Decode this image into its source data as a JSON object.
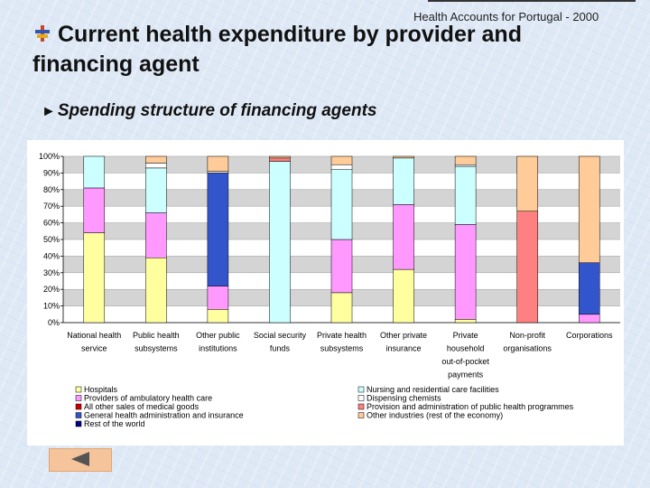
{
  "slide": {
    "header": "Health Accounts for Portugal - 2000",
    "title": "Current health expenditure by provider and financing agent",
    "subtitle": "Spending structure of financing agents",
    "subtitle_marker": "►"
  },
  "colors": {
    "hospitals": "#ffffa0",
    "ambulatory": "#ff99ff",
    "other_medical_goods": "#cc0000",
    "general_admin": "#3355cc",
    "rest_of_world": "#000080",
    "nursing": "#ccffff",
    "dispensing_chemists": "#ffffff",
    "public_health": "#ff8080",
    "other_industries": "#ffcc99",
    "grid_band": "#d4d4d4",
    "back_button": "#f5c49a",
    "arrow": "#555555"
  },
  "chart_data": {
    "type": "bar",
    "stacked": true,
    "title": "Spending structure of financing agents",
    "xlabel": "",
    "ylabel": "",
    "ylim": [
      0,
      100
    ],
    "yticks": [
      "0%",
      "10%",
      "20%",
      "30%",
      "40%",
      "50%",
      "60%",
      "70%",
      "80%",
      "90%",
      "100%"
    ],
    "categories": [
      [
        "National health",
        "service"
      ],
      [
        "Public health",
        "subsystems"
      ],
      [
        "Other public",
        "institutions"
      ],
      [
        "Social security",
        "funds"
      ],
      [
        "Private health",
        "subsystems"
      ],
      [
        "Other private",
        "insurance"
      ],
      [
        "Private",
        "household",
        "out-of-pocket",
        "payments"
      ],
      [
        "Non-profit",
        "organisations"
      ],
      [
        "Corporations"
      ]
    ],
    "series": [
      {
        "name": "Hospitals",
        "key": "hospitals",
        "values": [
          54,
          39,
          8,
          0,
          18,
          32,
          2,
          0,
          0
        ]
      },
      {
        "name": "Providers of ambulatory health care",
        "key": "ambulatory",
        "values": [
          27,
          27,
          14,
          0,
          32,
          39,
          57,
          0,
          5
        ]
      },
      {
        "name": "All other sales of medical goods",
        "key": "other_medical_goods",
        "values": [
          0,
          0,
          0,
          0,
          0,
          0,
          0,
          0,
          0
        ]
      },
      {
        "name": "General health administration and insurance",
        "key": "general_admin",
        "values": [
          0,
          0,
          68,
          0,
          0,
          0,
          0,
          0,
          31
        ]
      },
      {
        "name": "Rest of the world",
        "key": "rest_of_world",
        "values": [
          0,
          0,
          0,
          0,
          0,
          0,
          0,
          0,
          0
        ]
      },
      {
        "name": "Nursing and residential care facilities",
        "key": "nursing",
        "values": [
          19,
          27,
          0,
          97,
          42,
          28,
          35,
          0,
          0
        ]
      },
      {
        "name": "Dispensing chemists",
        "key": "dispensing_chemists",
        "values": [
          0,
          3,
          1,
          0,
          3,
          0,
          1,
          0,
          0
        ]
      },
      {
        "name": "Provision and administration of public health programmes",
        "key": "public_health",
        "values": [
          0,
          0,
          0,
          2,
          0,
          0,
          0,
          67,
          0
        ]
      },
      {
        "name": "Other industries (rest of the economy)",
        "key": "other_industries",
        "values": [
          0,
          4,
          9,
          1,
          5,
          1,
          5,
          33,
          64
        ]
      }
    ],
    "legend": {
      "placement": "bottom",
      "left_column": [
        "hospitals",
        "ambulatory",
        "other_medical_goods",
        "general_admin",
        "rest_of_world"
      ],
      "right_column": [
        "nursing",
        "dispensing_chemists",
        "public_health",
        "other_industries"
      ]
    }
  }
}
